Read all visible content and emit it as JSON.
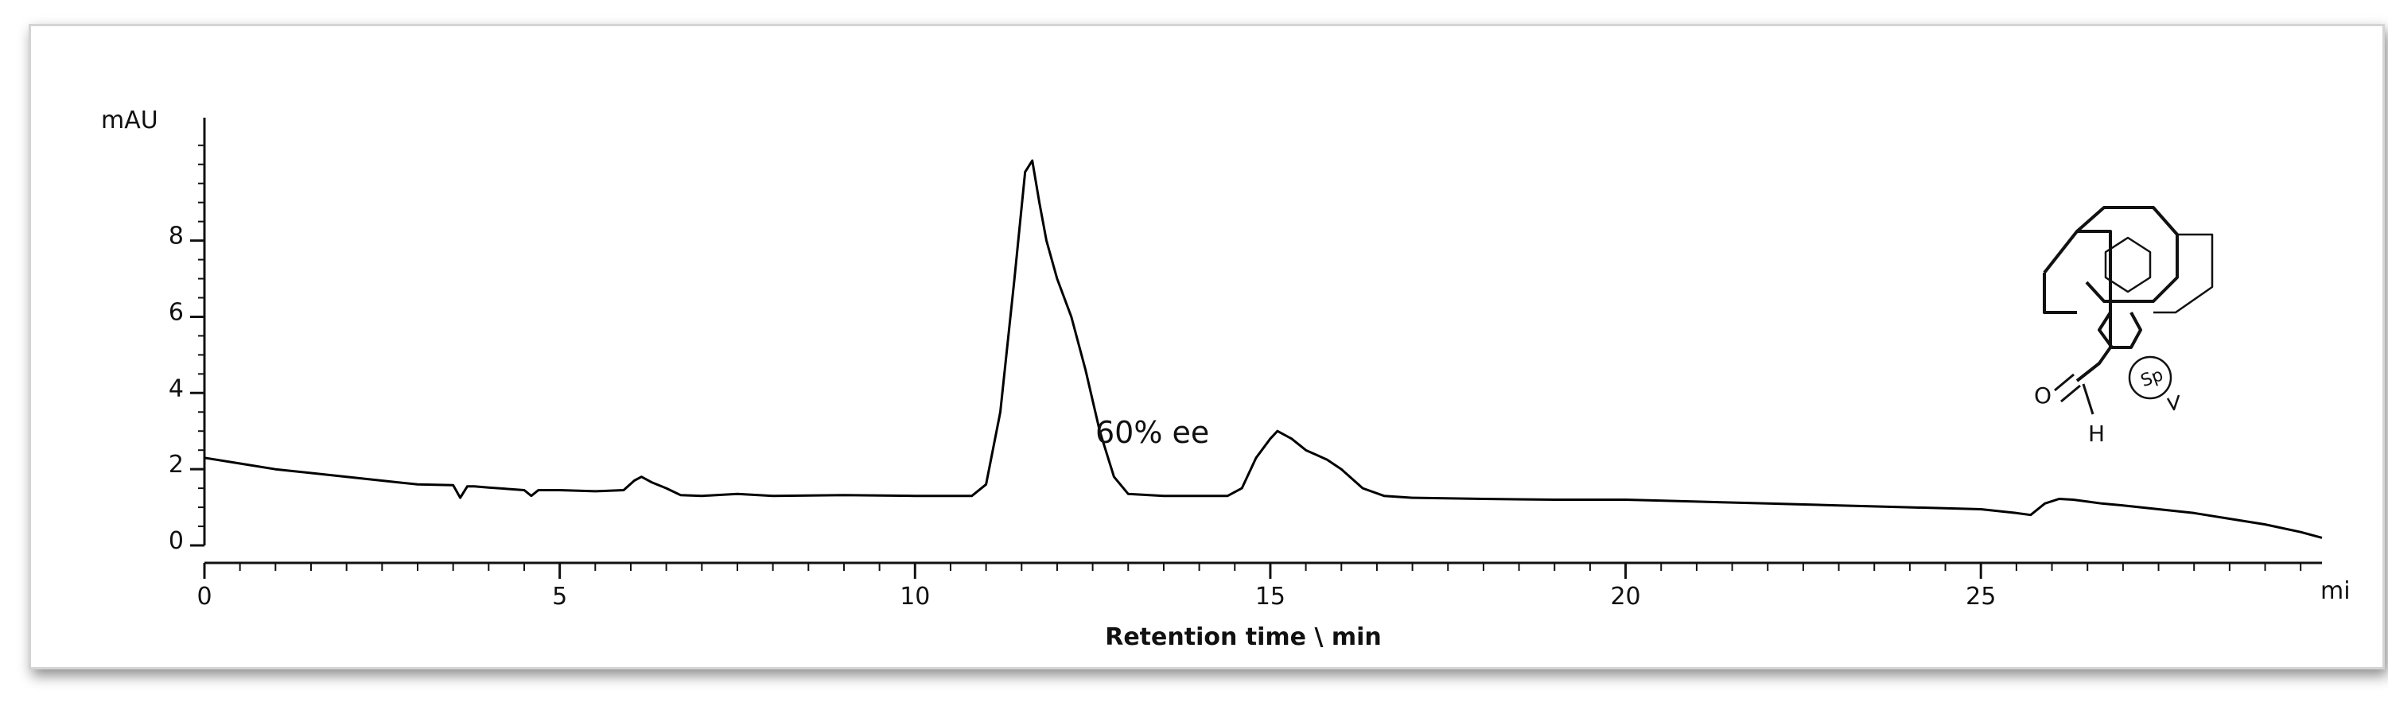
{
  "chart_data": {
    "type": "line",
    "ylabel": "mAU",
    "xlabel": "Retention time \\ min",
    "x_unit_label": "mi",
    "xlim": [
      0,
      29.8
    ],
    "ylim": [
      0,
      10.6
    ],
    "x_ticks": [
      0,
      5,
      10,
      15,
      20,
      25
    ],
    "x_tick_labels": [
      "0",
      "5",
      "10",
      "15",
      "20",
      "25"
    ],
    "y_ticks": [
      0,
      2,
      4,
      6,
      8
    ],
    "y_tick_labels": [
      "0",
      "2",
      "4",
      "6",
      "8"
    ],
    "grid": false,
    "annotation": "60% ee",
    "series": [
      {
        "color": "#000000",
        "x": [
          0,
          0.5,
          1,
          2,
          3,
          3.5,
          3.6,
          3.7,
          3.8,
          4,
          4.5,
          4.6,
          4.7,
          4.8,
          5,
          5.5,
          5.9,
          6.05,
          6.15,
          6.3,
          6.5,
          6.7,
          7,
          7.5,
          8,
          9,
          10,
          10.8,
          11.0,
          11.2,
          11.4,
          11.55,
          11.65,
          11.75,
          11.85,
          12.0,
          12.2,
          12.4,
          12.6,
          12.8,
          13.0,
          13.5,
          14.0,
          14.4,
          14.6,
          14.8,
          15.0,
          15.1,
          15.3,
          15.5,
          15.8,
          16.0,
          16.3,
          16.6,
          17,
          18,
          19,
          20,
          21,
          22,
          23,
          24,
          25,
          25.5,
          25.7,
          25.9,
          26.1,
          26.3,
          26.5,
          26.7,
          27,
          27.5,
          28,
          28.5,
          29,
          29.5,
          29.8
        ],
        "y": [
          2.3,
          2.15,
          2.0,
          1.8,
          1.6,
          1.58,
          1.25,
          1.55,
          1.55,
          1.52,
          1.45,
          1.3,
          1.45,
          1.45,
          1.45,
          1.42,
          1.45,
          1.7,
          1.8,
          1.65,
          1.5,
          1.32,
          1.3,
          1.35,
          1.3,
          1.32,
          1.3,
          1.3,
          1.6,
          3.5,
          7.0,
          9.8,
          10.1,
          9.0,
          8.0,
          7.0,
          6.0,
          4.6,
          3.0,
          1.8,
          1.35,
          1.3,
          1.3,
          1.3,
          1.5,
          2.3,
          2.8,
          3.0,
          2.8,
          2.5,
          2.25,
          2.0,
          1.5,
          1.3,
          1.25,
          1.22,
          1.2,
          1.2,
          1.15,
          1.1,
          1.05,
          1.0,
          0.95,
          0.85,
          0.8,
          1.1,
          1.22,
          1.2,
          1.15,
          1.1,
          1.05,
          0.95,
          0.85,
          0.7,
          0.55,
          0.35,
          0.2
        ]
      }
    ]
  },
  "molecule": {
    "atom_o": "O",
    "atom_h": "H",
    "chirality_label": "Sp"
  }
}
